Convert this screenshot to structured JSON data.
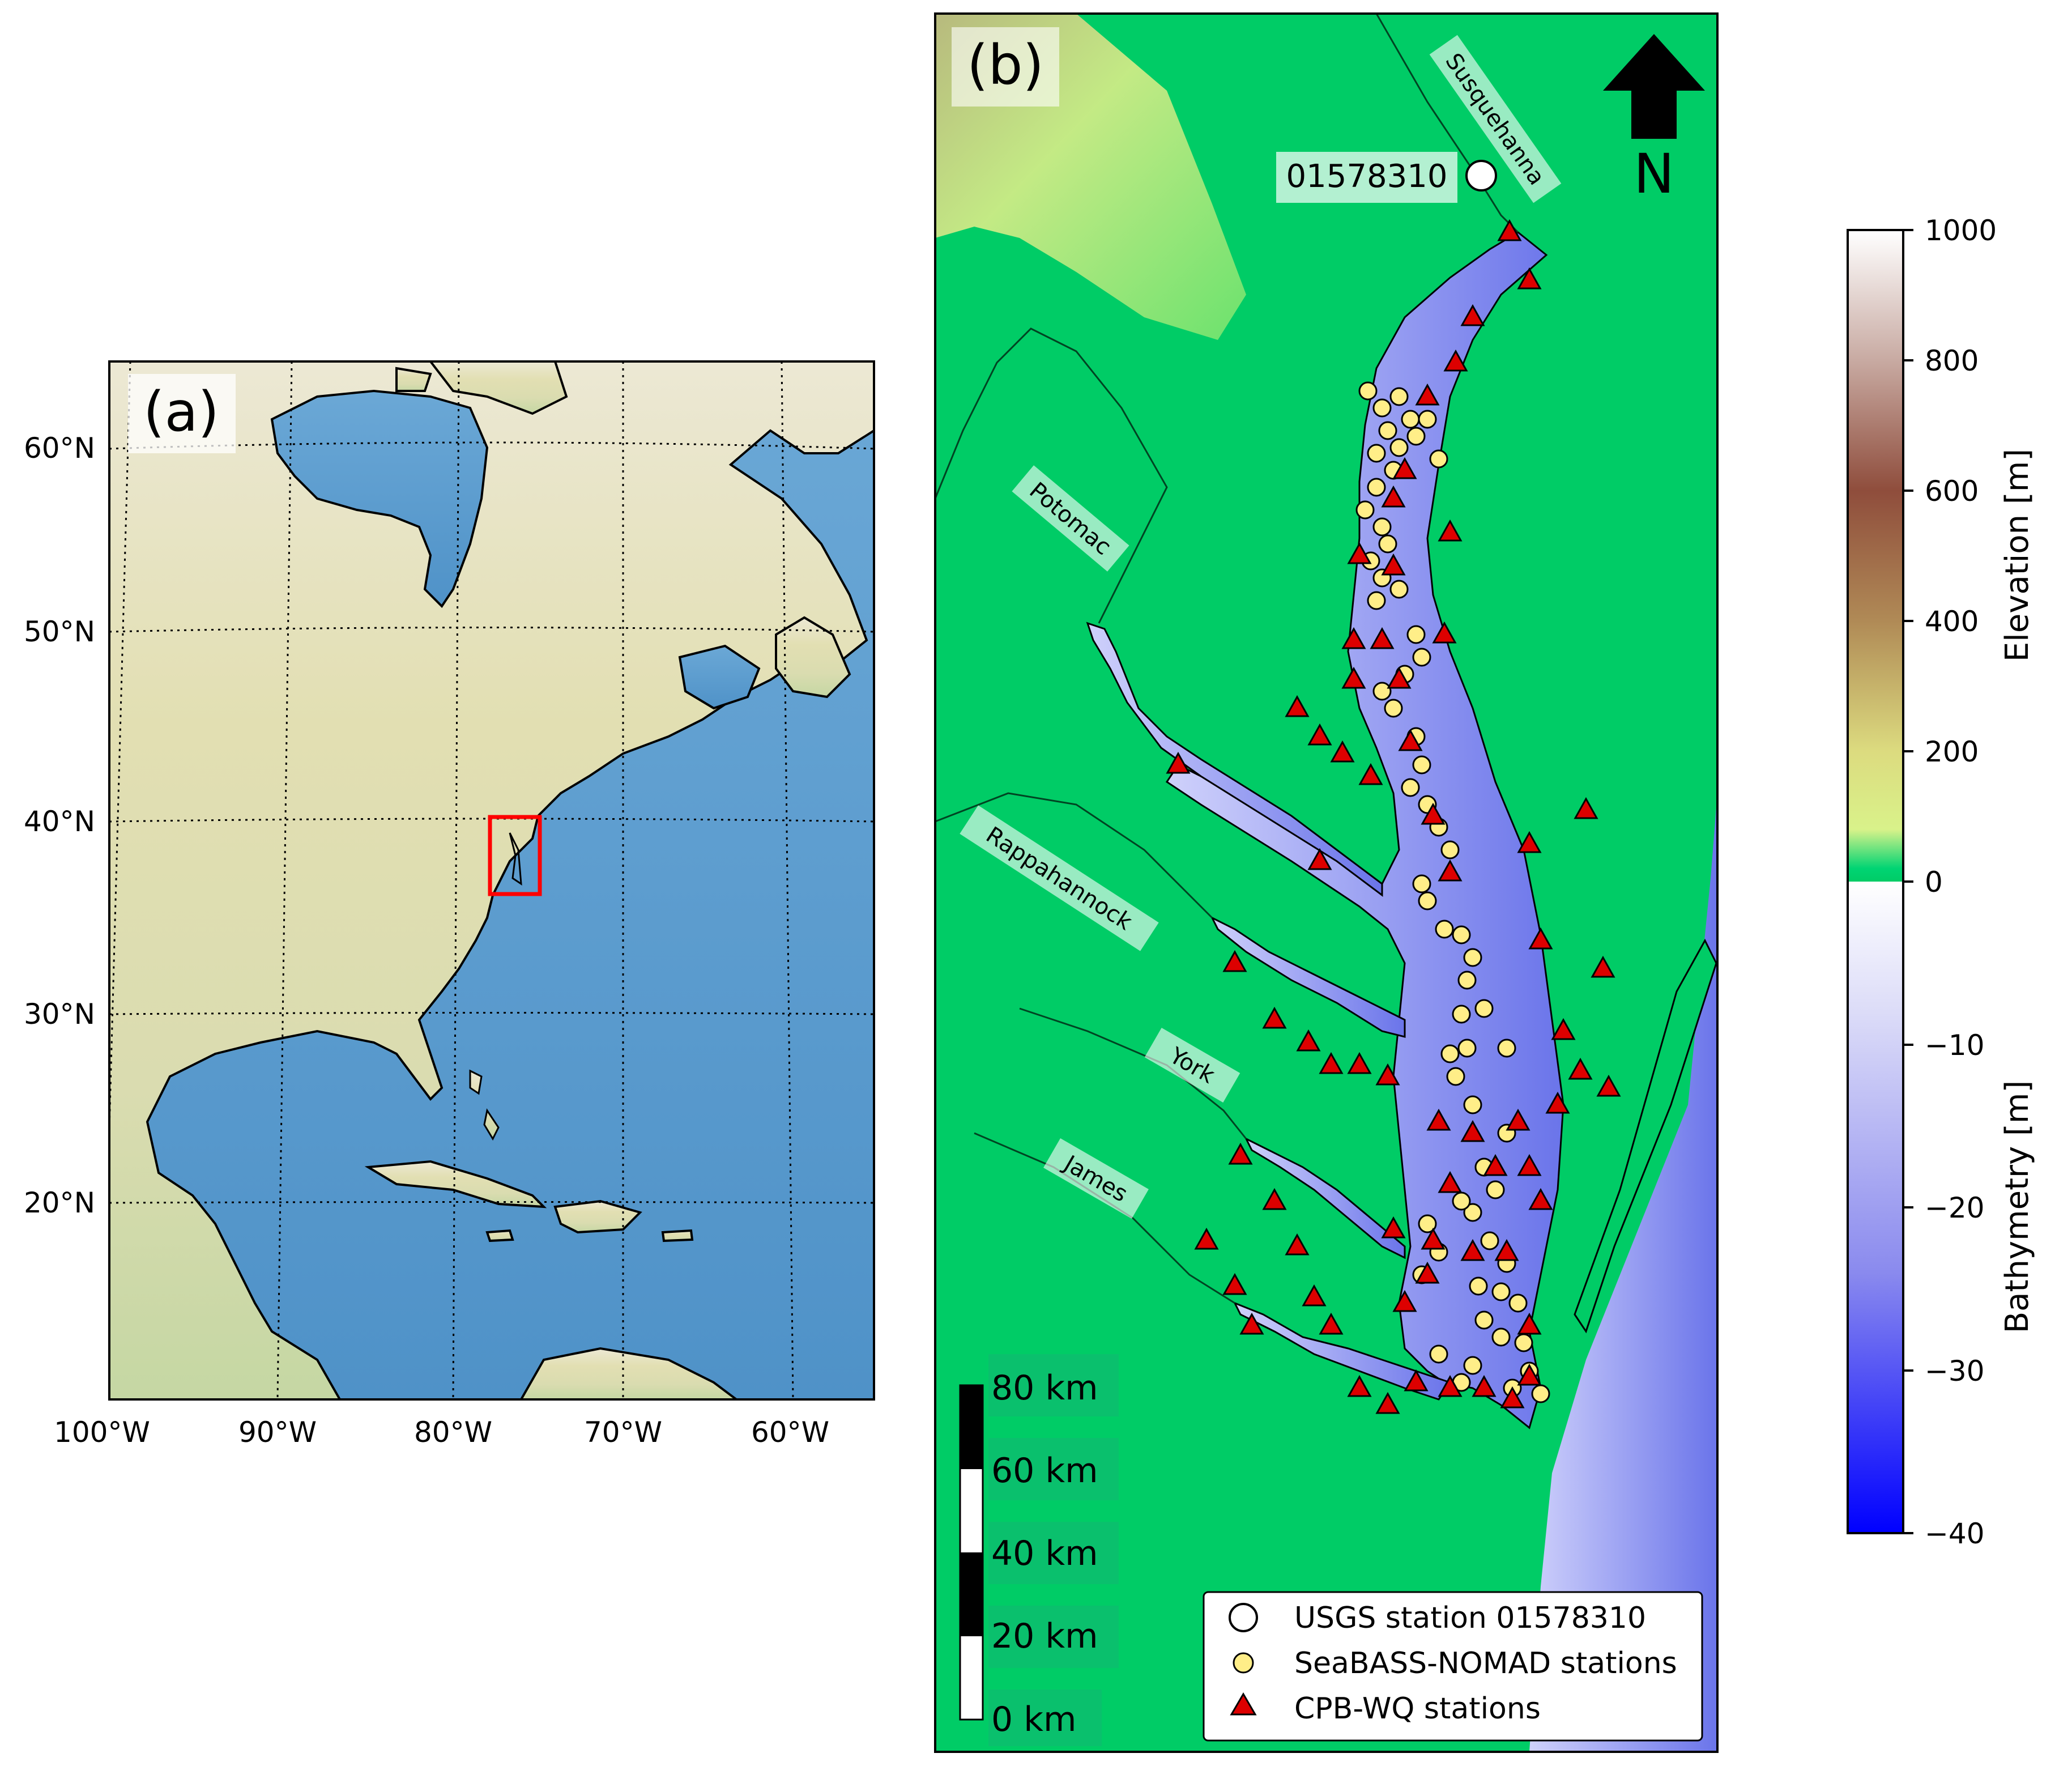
{
  "panel_a": {
    "label": "(a)",
    "lat_labels": [
      "60°N",
      "50°N",
      "40°N",
      "30°N",
      "20°N"
    ],
    "lon_labels": [
      "100°W",
      "90°W",
      "80°W",
      "70°W",
      "60°W"
    ]
  },
  "panel_b": {
    "label": "(b)",
    "north_label": "N",
    "usgs_label": "01578310",
    "rivers": [
      "Susquehanna",
      "Potomac",
      "Rappahannock",
      "York",
      "James"
    ],
    "scalebar": [
      "80 km",
      "60 km",
      "40 km",
      "20 km",
      "0 km"
    ],
    "legend": [
      "USGS station 01578310",
      "SeaBASS-NOMAD stations",
      "CPB-WQ stations"
    ]
  },
  "colorbar": {
    "elevation_label": "Elevation [m]",
    "bathymetry_label": "Bathymetry [m]",
    "ticks": [
      "1000",
      "800",
      "600",
      "400",
      "200",
      "0",
      "−10",
      "−20",
      "−30",
      "−40"
    ]
  },
  "colors": {
    "land_green": "#00cc66",
    "ocean_blue": "#6fa6cf",
    "bbox_red": "#ff0000",
    "seabass_yellow": "#ffee88",
    "cpb_red": "#dd0000"
  },
  "icons": {
    "north": "north-arrow-icon"
  }
}
